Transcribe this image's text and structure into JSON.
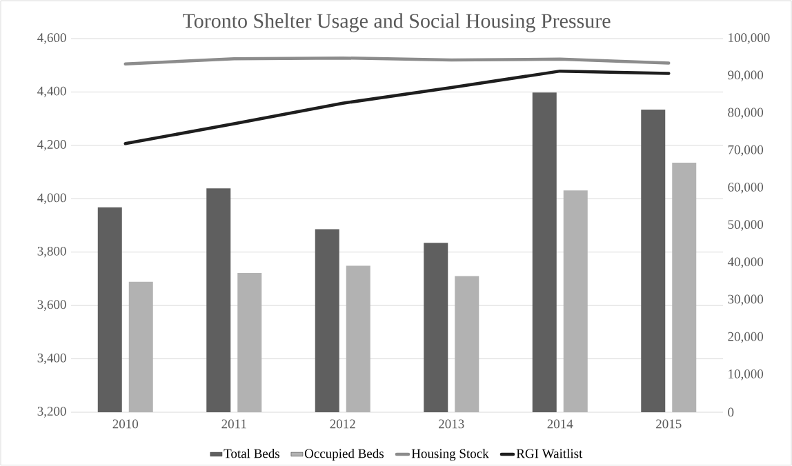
{
  "chart_data": {
    "type": "bar",
    "title": "Toronto Shelter Usage and Social Housing Pressure",
    "categories": [
      "2010",
      "2011",
      "2012",
      "2013",
      "2014",
      "2015"
    ],
    "series": [
      {
        "name": "Total Beds",
        "color": "#5f5f5f",
        "values": [
          3968,
          4039,
          3886,
          3835,
          4398,
          4334
        ]
      },
      {
        "name": "Occupied Beds",
        "color": "#b2b2b2",
        "values": [
          3689,
          3722,
          3749,
          3710,
          4031,
          4135
        ]
      },
      {
        "name": "Housing Stock",
        "type": "line",
        "axis": "y2",
        "color": "#8c8c8c",
        "values": [
          93200,
          94600,
          94800,
          94300,
          94500,
          93450
        ]
      },
      {
        "name": "RGI Waitlist",
        "type": "line",
        "axis": "y2",
        "color": "#1e1e1e",
        "values": [
          71900,
          77200,
          82700,
          86900,
          91300,
          90700
        ]
      }
    ],
    "ylim": [
      3200,
      4600
    ],
    "yticks": [
      {
        "value": 3200,
        "label": "3,200"
      },
      {
        "value": 3400,
        "label": "3,400"
      },
      {
        "value": 3600,
        "label": "3,600"
      },
      {
        "value": 3800,
        "label": "3,800"
      },
      {
        "value": 4000,
        "label": "4,000"
      },
      {
        "value": 4200,
        "label": "4,200"
      },
      {
        "value": 4400,
        "label": "4,400"
      },
      {
        "value": 4600,
        "label": "4,600"
      }
    ],
    "y2lim": [
      0,
      100000
    ],
    "y2ticks": [
      0,
      {
        "value": 10000,
        "label": "10,000"
      },
      {
        "value": 20000,
        "label": "20,000"
      },
      {
        "value": 30000,
        "label": "30,000"
      },
      {
        "value": 40000,
        "label": "40,000"
      },
      {
        "value": 50000,
        "label": "50,000"
      },
      {
        "value": 60000,
        "label": "60,000"
      },
      {
        "value": 70000,
        "label": "70,000"
      },
      {
        "value": 80000,
        "label": "80,000"
      },
      {
        "value": 90000,
        "label": "90,000"
      },
      {
        "value": 100000,
        "label": "100,000"
      }
    ],
    "grid": "y",
    "legend": "bottom",
    "marker": "none",
    "line_style": "solid"
  }
}
